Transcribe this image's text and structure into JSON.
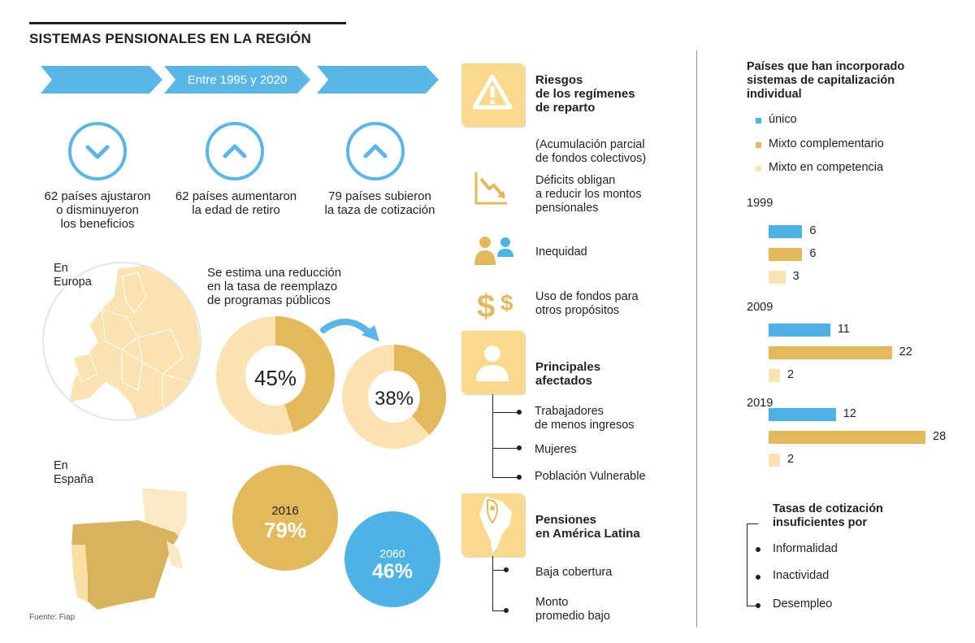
{
  "header": {
    "title": "SISTEMAS PENSIONALES EN LA REGIÓN"
  },
  "timeline": {
    "arrow_label": "Entre 1995 y 2020",
    "items": [
      {
        "text_1": "62 países ajustaron",
        "text_2": "o disminuyeron",
        "text_3": "los beneficios",
        "direction": "down"
      },
      {
        "text_1": "62 países aumentaron",
        "text_2": "la edad de retiro",
        "direction": "up"
      },
      {
        "text_1": "79 países subieron",
        "text_2": "la taza de cotización",
        "direction": "up"
      }
    ]
  },
  "europe": {
    "label_1": "En",
    "label_2": "Europa",
    "note_1": "Se estima una reducción",
    "note_2": "en la tasa de reemplazo",
    "note_3": "de programas públicos",
    "donut_before": {
      "value": 45,
      "label": "45%"
    },
    "donut_after": {
      "value": 38,
      "label": "38%"
    }
  },
  "spain": {
    "label_1": "En",
    "label_2": "España",
    "year_a": "2016",
    "value_a": "79%",
    "year_b": "2060",
    "value_b": "46%"
  },
  "source": "Fuente: Fiap",
  "risks": {
    "title_1": "Riesgos",
    "title_2": "de los regímenes",
    "title_3": "de reparto",
    "sub_1": "(Acumulación parcial",
    "sub_2": "de fondos colectivos)",
    "deficit_1": "Déficits obligan",
    "deficit_2": "a reducir los montos",
    "deficit_3": "pensionales",
    "inequity": "Inequidad",
    "funds_1": "Uso de fondos para",
    "funds_2": "otros propósitos"
  },
  "affected": {
    "title_1": "Principales",
    "title_2": "afectados",
    "item_1a": "Trabajadores",
    "item_1b": "de menos ingresos",
    "item_2": "Mujeres",
    "item_3": "Población Vulnerable"
  },
  "latam": {
    "title_1": "Pensiones",
    "title_2": "en América Latina",
    "item_1": "Baja cobertura",
    "item_2a": "Monto",
    "item_2b": "promedio bajo"
  },
  "chart_data": {
    "type": "bar",
    "title": "Países que han incorporado sistemas de capitalización individual",
    "title_1": "Países que han incorporado",
    "title_2": "sistemas de capitalización",
    "title_3": "individual",
    "legend": [
      "único",
      "Mixto complementario",
      "Mixto en competencia"
    ],
    "categories": [
      "1999",
      "2009",
      "2019"
    ],
    "series": [
      {
        "name": "único",
        "values": [
          6,
          11,
          12
        ],
        "color": "#4db3e6"
      },
      {
        "name": "Mixto complementario",
        "values": [
          6,
          22,
          28
        ],
        "color": "#e4b95c"
      },
      {
        "name": "Mixto en competencia",
        "values": [
          3,
          2,
          2
        ],
        "color": "#fbe2b1"
      }
    ]
  },
  "rates": {
    "title_1": "Tasas de cotización",
    "title_2": "insuficientes por",
    "item_1": "Informalidad",
    "item_2": "Inactividad",
    "item_3": "Desempleo"
  },
  "colors": {
    "blue": "#5bb6e8",
    "gold": "#e4b95c",
    "cream": "#fbe2b1",
    "dark_gold": "#d9a640"
  }
}
